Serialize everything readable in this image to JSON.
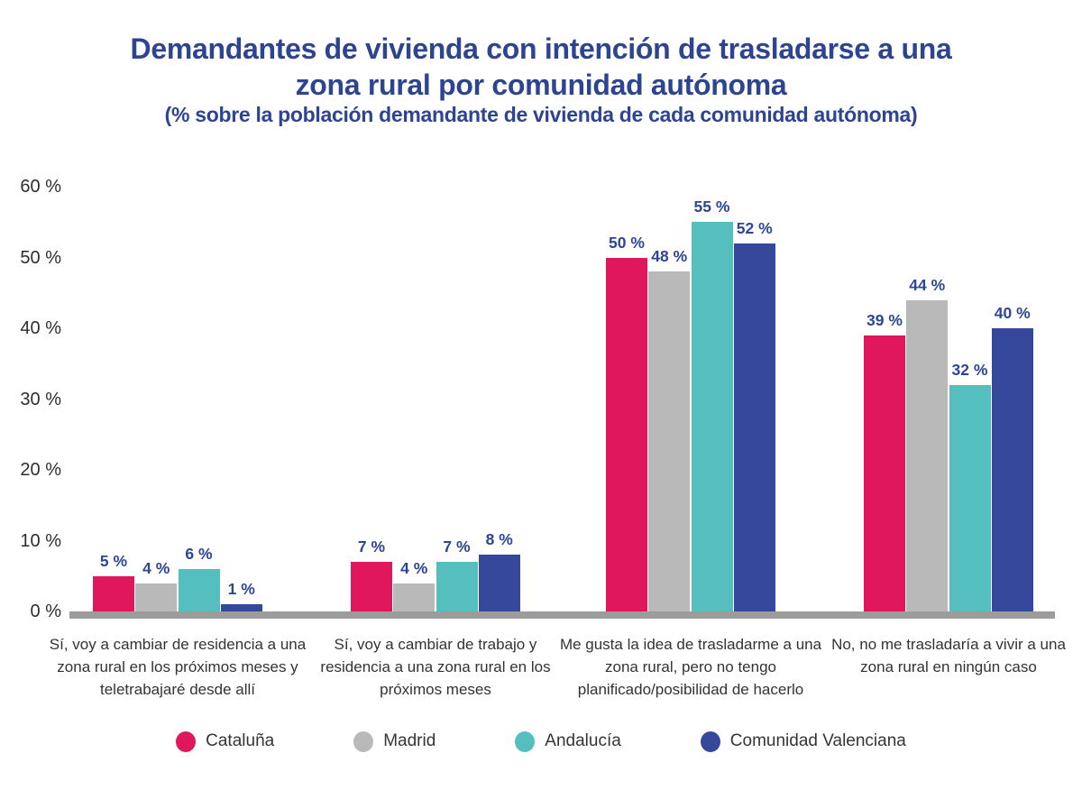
{
  "header": {
    "title_line1": "Demandantes de vivienda con intención de trasladarse a una",
    "title_line2": "zona rural por comunidad autónoma",
    "subtitle": "(% sobre la población demandante de vivienda de cada comunidad autónoma)"
  },
  "chart_data": {
    "type": "bar",
    "title": "Demandantes de vivienda con intención de trasladarse a una zona rural por comunidad autónoma",
    "subtitle": "(% sobre la población demandante de vivienda de cada comunidad autónoma)",
    "categories": [
      "Sí, voy a cambiar de residencia a una zona rural en los próximos meses  y teletrabajaré desde allí",
      "Sí, voy a cambiar de trabajo y residencia a una zona rural en los próximos meses",
      "Me gusta la idea de trasladarme a una zona rural, pero no tengo planificado/posibilidad de hacerlo",
      "No, no me trasladaría a vivir a una zona rural en ningún caso"
    ],
    "series": [
      {
        "name": "Cataluña",
        "color": "#e0175c",
        "values": [
          5,
          7,
          50,
          39
        ]
      },
      {
        "name": "Madrid",
        "color": "#b9b9b9",
        "values": [
          4,
          4,
          48,
          44
        ]
      },
      {
        "name": "Andalucía",
        "color": "#55bfc0",
        "values": [
          6,
          7,
          55,
          32
        ]
      },
      {
        "name": "Comunidad Valenciana",
        "color": "#36489b",
        "values": [
          1,
          8,
          52,
          40
        ]
      }
    ],
    "value_suffix": " %",
    "y_axis": {
      "ticks": [
        "60 %",
        "50 %",
        "40 %",
        "30 %",
        "20 %",
        "10 %",
        "0 %"
      ],
      "min": 0,
      "max": 60
    },
    "grid": false,
    "legend_position": "bottom",
    "colors": {
      "title_text": "#2d4493",
      "value_label_text": "#2d4595",
      "axis_text": "#2e2e2e",
      "category_text": "#333333",
      "legend_text": "#353535",
      "baseline": "#9c9c9c",
      "background": "#ffffff"
    }
  }
}
